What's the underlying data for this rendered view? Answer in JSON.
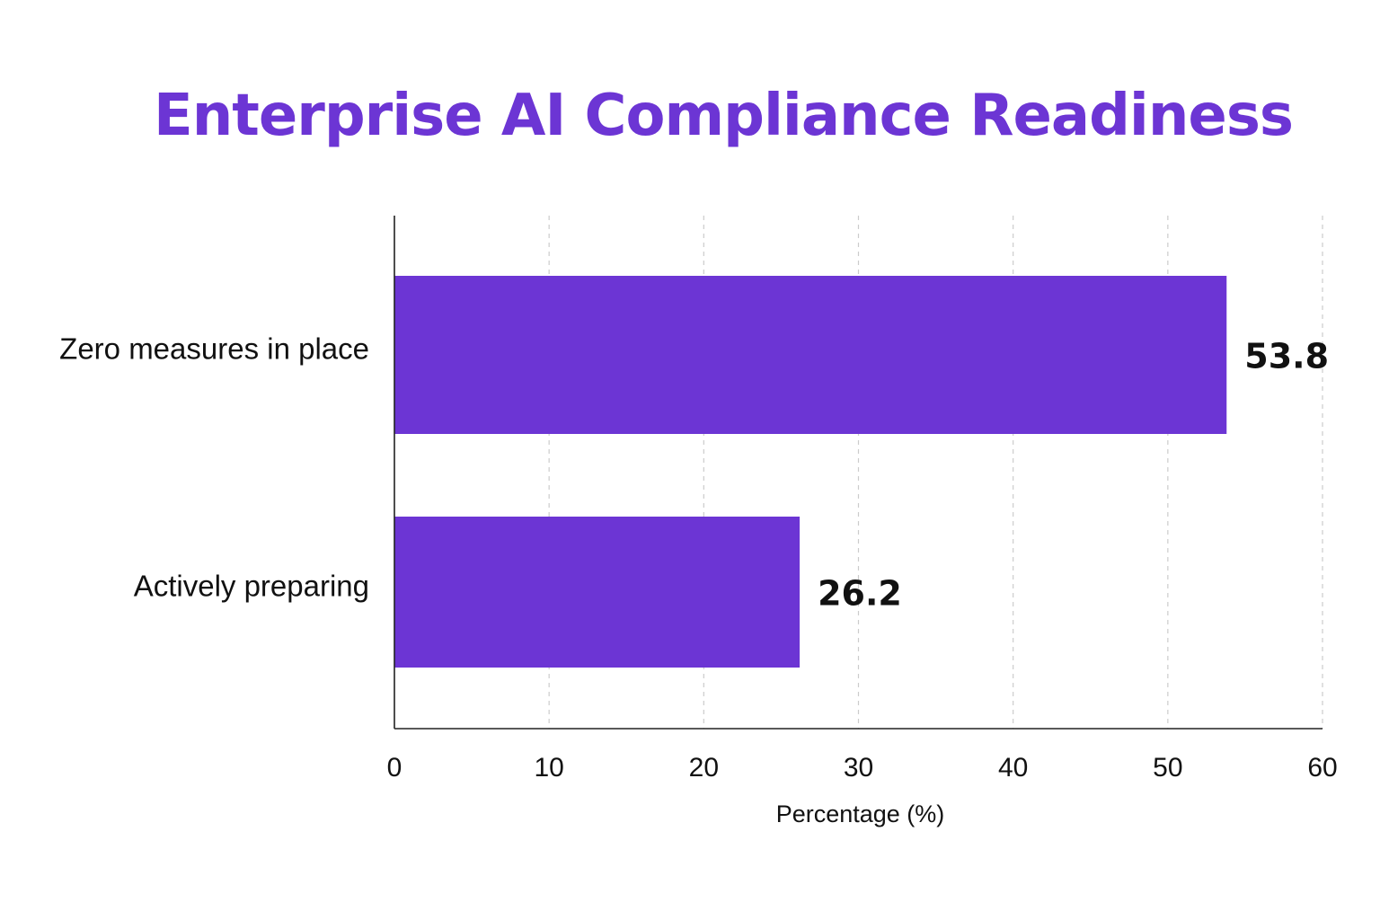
{
  "chart_data": {
    "type": "bar",
    "orientation": "horizontal",
    "title": "Enterprise AI Compliance Readiness",
    "categories": [
      "Zero measures in place",
      "Actively preparing"
    ],
    "values": [
      53.8,
      26.2
    ],
    "value_labels": [
      "53.8",
      "26.2"
    ],
    "xlabel": "Percentage (%)",
    "ylabel": "",
    "xlim": [
      0,
      60
    ],
    "xticks": [
      0,
      10,
      20,
      30,
      40,
      50,
      60
    ],
    "xtick_labels": [
      "0",
      "10",
      "20",
      "30",
      "40",
      "50",
      "60"
    ],
    "grid": "vertical dashed",
    "legend": "none",
    "colors": {
      "bar": "#6c35d4",
      "title": "#6c35d4",
      "text": "#111111",
      "grid": "#cccccc",
      "axis": "#222222"
    }
  }
}
